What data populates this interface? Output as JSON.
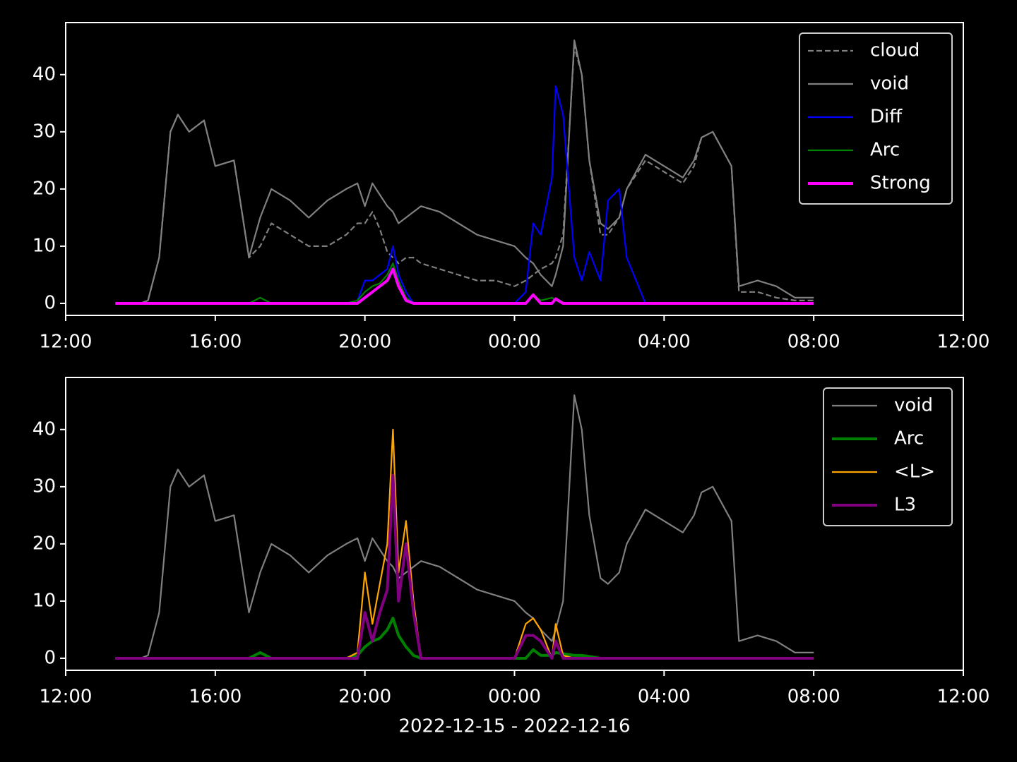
{
  "chart_data": [
    {
      "type": "line",
      "ylim": [
        -2.1,
        49.1
      ],
      "yticks": [
        0,
        10,
        20,
        30,
        40
      ],
      "xlim": [
        12,
        36
      ],
      "xticks": [
        {
          "value": 12,
          "label": "12:00"
        },
        {
          "value": 16,
          "label": "16:00"
        },
        {
          "value": 20,
          "label": "20:00"
        },
        {
          "value": 24,
          "label": "00:00"
        },
        {
          "value": 28,
          "label": "04:00"
        },
        {
          "value": 32,
          "label": "08:00"
        },
        {
          "value": 36,
          "label": "12:00"
        }
      ],
      "legend": "upper right",
      "x": [
        13.33,
        14,
        14.2,
        14.5,
        14.8,
        15,
        15.3,
        15.7,
        16,
        16.5,
        16.9,
        17.2,
        17.5,
        18,
        18.5,
        19,
        19.5,
        19.8,
        20,
        20.2,
        20.4,
        20.6,
        20.75,
        20.9,
        21.1,
        21.3,
        21.5,
        22,
        22.5,
        23,
        23.5,
        24,
        24.3,
        24.5,
        24.7,
        25,
        25.1,
        25.3,
        25.6,
        25.8,
        26,
        26.3,
        26.5,
        26.8,
        27,
        27.5,
        28,
        28.5,
        28.8,
        29,
        29.3,
        29.8,
        30,
        30.5,
        31,
        31.5,
        32
      ],
      "series": [
        {
          "name": "cloud",
          "color": "#808080",
          "linestyle": "dashed",
          "linewidth": 2.2,
          "values": [
            0,
            0,
            0.5,
            8,
            30,
            33,
            30,
            32,
            24,
            25,
            8,
            10,
            14,
            12,
            10,
            10,
            12,
            14,
            14,
            16,
            13,
            9,
            8,
            7,
            8,
            8,
            7,
            6,
            5,
            4,
            4,
            3,
            4,
            5,
            6,
            7,
            8,
            12,
            45,
            40,
            25,
            12,
            12,
            15,
            20,
            25,
            23,
            21,
            24,
            29,
            30,
            24,
            2,
            2,
            1,
            0.5,
            0.5
          ]
        },
        {
          "name": "void",
          "color": "#808080",
          "linestyle": "solid",
          "linewidth": 2.2,
          "values": [
            0,
            0,
            0.5,
            8,
            30,
            33,
            30,
            32,
            24,
            25,
            8,
            15,
            20,
            18,
            15,
            18,
            20,
            21,
            17,
            21,
            19,
            17,
            16,
            14,
            15,
            16,
            17,
            16,
            14,
            12,
            11,
            10,
            8,
            7,
            5,
            3,
            5,
            10,
            46,
            40,
            25,
            14,
            13,
            15,
            20,
            26,
            24,
            22,
            25,
            29,
            30,
            24,
            3,
            4,
            3,
            1,
            1
          ]
        },
        {
          "name": "Diff",
          "color": "#0000ff",
          "linestyle": "solid",
          "linewidth": 2.2,
          "values": [
            0,
            0,
            0,
            0,
            0,
            0,
            0,
            0,
            0,
            0,
            0,
            0,
            0,
            0,
            0,
            0,
            0,
            0.5,
            4,
            4,
            5,
            6,
            10,
            5,
            2,
            0,
            0,
            0,
            0,
            0,
            0,
            0,
            2,
            14,
            12,
            22,
            38,
            33,
            8,
            4,
            9,
            4,
            18,
            20,
            8,
            0,
            0,
            0,
            0,
            0,
            0,
            0,
            0,
            0,
            0,
            0,
            0
          ]
        },
        {
          "name": "Arc",
          "color": "#008000",
          "linestyle": "solid",
          "linewidth": 2.2,
          "values": [
            0,
            0,
            0,
            0,
            0,
            0,
            0,
            0,
            0,
            0,
            0,
            1,
            0,
            0,
            0,
            0,
            0,
            0.5,
            2,
            3,
            3.5,
            5,
            7,
            4,
            1,
            0,
            0,
            0,
            0,
            0,
            0,
            0,
            0,
            1.5,
            0.5,
            1,
            0.5,
            0,
            0,
            0,
            0,
            0,
            0,
            0,
            0,
            0,
            0,
            0,
            0,
            0,
            0,
            0,
            0,
            0,
            0,
            0,
            0
          ]
        },
        {
          "name": "Strong",
          "color": "#ff00ff",
          "linestyle": "solid",
          "linewidth": 4,
          "values": [
            0,
            0,
            0,
            0,
            0,
            0,
            0,
            0,
            0,
            0,
            0,
            0,
            0,
            0,
            0,
            0,
            0,
            0,
            1,
            2,
            3,
            4,
            6,
            3,
            0.5,
            0,
            0,
            0,
            0,
            0,
            0,
            0,
            0,
            1.5,
            0,
            0,
            0.8,
            0,
            0,
            0,
            0,
            0,
            0,
            0,
            0,
            0,
            0,
            0,
            0,
            0,
            0,
            0,
            0,
            0,
            0,
            0,
            0
          ]
        }
      ]
    },
    {
      "type": "line",
      "ylim": [
        -2.1,
        49.1
      ],
      "yticks": [
        0,
        10,
        20,
        30,
        40
      ],
      "xlim": [
        12,
        36
      ],
      "xticks": [
        {
          "value": 12,
          "label": "12:00"
        },
        {
          "value": 16,
          "label": "16:00"
        },
        {
          "value": 20,
          "label": "20:00"
        },
        {
          "value": 24,
          "label": "00:00"
        },
        {
          "value": 28,
          "label": "04:00"
        },
        {
          "value": 32,
          "label": "08:00"
        },
        {
          "value": 36,
          "label": "12:00"
        }
      ],
      "xlabel": "2022-12-15 - 2022-12-16",
      "legend": "upper right",
      "x": [
        13.33,
        14,
        14.2,
        14.5,
        14.8,
        15,
        15.3,
        15.7,
        16,
        16.5,
        16.9,
        17.2,
        17.5,
        18,
        18.5,
        19,
        19.5,
        19.8,
        20,
        20.2,
        20.4,
        20.6,
        20.75,
        20.9,
        21.1,
        21.3,
        21.5,
        22,
        22.5,
        23,
        23.5,
        24,
        24.3,
        24.5,
        24.7,
        25,
        25.1,
        25.3,
        25.6,
        25.8,
        26,
        26.3,
        26.5,
        26.8,
        27,
        27.5,
        28,
        28.5,
        28.8,
        29,
        29.3,
        29.8,
        30,
        30.5,
        31,
        31.5,
        32
      ],
      "series": [
        {
          "name": "void",
          "color": "#808080",
          "linestyle": "solid",
          "linewidth": 2.2,
          "values": [
            0,
            0,
            0.5,
            8,
            30,
            33,
            30,
            32,
            24,
            25,
            8,
            15,
            20,
            18,
            15,
            18,
            20,
            21,
            17,
            21,
            19,
            17,
            16,
            14,
            15,
            16,
            17,
            16,
            14,
            12,
            11,
            10,
            8,
            7,
            5,
            3,
            5,
            10,
            46,
            40,
            25,
            14,
            13,
            15,
            20,
            26,
            24,
            22,
            25,
            29,
            30,
            24,
            3,
            4,
            3,
            1,
            1
          ]
        },
        {
          "name": "Arc",
          "color": "#008000",
          "linestyle": "solid",
          "linewidth": 4,
          "values": [
            0,
            0,
            0,
            0,
            0,
            0,
            0,
            0,
            0,
            0,
            0,
            1,
            0,
            0,
            0,
            0,
            0,
            0.5,
            2,
            3,
            3.5,
            5,
            7,
            4,
            2,
            0.5,
            0,
            0,
            0,
            0,
            0,
            0,
            0,
            1.5,
            0.5,
            0.5,
            1,
            0.8,
            0.5,
            0.5,
            0.3,
            0,
            0,
            0,
            0,
            0,
            0,
            0,
            0,
            0,
            0,
            0,
            0,
            0,
            0,
            0,
            0
          ]
        },
        {
          "name": "<L>",
          "color": "#ffa500",
          "linestyle": "solid",
          "linewidth": 2.2,
          "values": [
            0,
            0,
            0,
            0,
            0,
            0,
            0,
            0,
            0,
            0,
            0,
            0,
            0,
            0,
            0,
            0,
            0,
            1,
            15,
            6,
            13,
            20,
            40,
            15,
            24,
            10,
            0,
            0,
            0,
            0,
            0,
            0,
            6,
            7,
            5,
            0,
            6,
            0.5,
            0,
            0,
            0,
            0,
            0,
            0,
            0,
            0,
            0,
            0,
            0,
            0,
            0,
            0,
            0,
            0,
            0,
            0,
            0
          ]
        },
        {
          "name": "L3",
          "color": "#800080",
          "linestyle": "solid",
          "linewidth": 4,
          "values": [
            0,
            0,
            0,
            0,
            0,
            0,
            0,
            0,
            0,
            0,
            0,
            0,
            0,
            0,
            0,
            0,
            0,
            0,
            8,
            3,
            8,
            12,
            32,
            10,
            20,
            8,
            0,
            0,
            0,
            0,
            0,
            0,
            4,
            4,
            3,
            0,
            3,
            0,
            0,
            0,
            0,
            0,
            0,
            0,
            0,
            0,
            0,
            0,
            0,
            0,
            0,
            0,
            0,
            0,
            0,
            0,
            0
          ]
        }
      ]
    }
  ]
}
